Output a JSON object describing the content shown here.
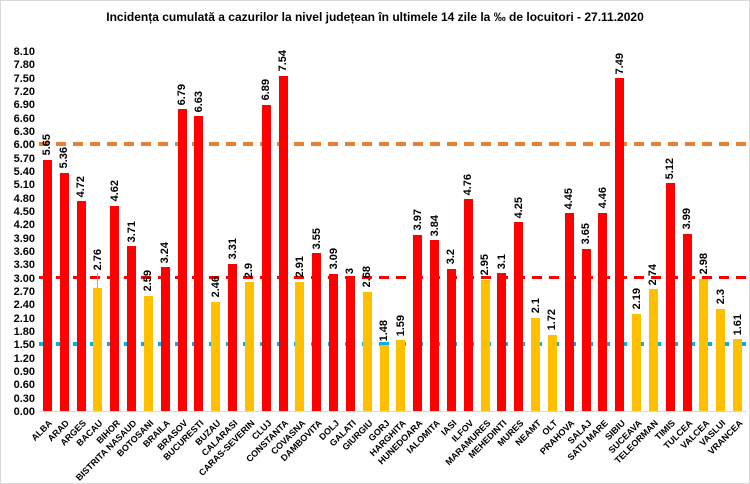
{
  "chart_data": {
    "type": "bar",
    "title": "Incidența cumulată a cazurilor la nivel județean în ultimele 14 zile la ‰ de locuitori - 27.11.2020",
    "categories": [
      "ALBA",
      "ARAD",
      "ARGES",
      "BACAU",
      "BIHOR",
      "BISTRITA NASAUD",
      "BOTOSANI",
      "BRAILA",
      "BRASOV",
      "BUCURESTI",
      "BUZAU",
      "CALARASI",
      "CARAS-SEVERIN",
      "CLUJ",
      "CONSTANTA",
      "COVASNA",
      "DAMBOVITA",
      "DOLJ",
      "GALATI",
      "GIURGIU",
      "GORJ",
      "HARGHITA",
      "HUNEDOARA",
      "IALOMITA",
      "IASI",
      "ILFOV",
      "MARAMURES",
      "MEHEDINTI",
      "MURES",
      "NEAMT",
      "OLT",
      "PRAHOVA",
      "SALAJ",
      "SATU MARE",
      "SIBIU",
      "SUCEAVA",
      "TELEORMAN",
      "TIMIS",
      "TULCEA",
      "VALCEA",
      "VASLUI",
      "VRANCEA"
    ],
    "values": [
      5.65,
      5.36,
      4.72,
      2.76,
      4.62,
      3.71,
      2.59,
      3.24,
      6.79,
      6.63,
      2.46,
      3.31,
      2.9,
      6.89,
      7.54,
      2.91,
      3.55,
      3.09,
      3,
      2.68,
      1.48,
      1.59,
      3.97,
      3.84,
      3.2,
      4.76,
      2.95,
      3.1,
      4.25,
      2.1,
      1.72,
      4.45,
      3.65,
      4.46,
      7.49,
      2.19,
      2.74,
      5.12,
      3.99,
      2.98,
      2.3,
      1.61
    ],
    "value_labels": [
      "5,65",
      "5,36",
      "4,72",
      "2,76",
      "4,62",
      "3,71",
      "2,59",
      "3,24",
      "6,79",
      "6,63",
      "2,46",
      "3,31",
      "2,9",
      "6,89",
      "7,54",
      "2,91",
      "3,55",
      "3,09",
      "3",
      "2,68",
      "1,48",
      "1,59",
      "3,97",
      "3,84",
      "3,2",
      "4,76",
      "2,95",
      "3,1",
      "4,25",
      "2,1",
      "1,72",
      "4,45",
      "3,65",
      "4,46",
      "7,49",
      "2,19",
      "2,74",
      "5,12",
      "3,99",
      "2,98",
      "2,3",
      "1,61"
    ],
    "value_labels_display": [
      "5.65",
      "5.36",
      "4.72",
      "2.76",
      "4.62",
      "3.71",
      "2.59",
      "3.24",
      "6.79",
      "6.63",
      "2.46",
      "3.31",
      "2.9",
      "6.89",
      "7.54",
      "2.91",
      "3.55",
      "3.09",
      "3",
      "2.68",
      "1.48",
      "1.59",
      "3.97",
      "3.84",
      "3.2",
      "4.76",
      "2.95",
      "3.1",
      "4.25",
      "2.1",
      "1.72",
      "4.45",
      "3.65",
      "4.46",
      "7.49",
      "2.19",
      "2.74",
      "5.12",
      "3.99",
      "2.98",
      "2.3",
      "1.61"
    ],
    "ylim": [
      0,
      8.1
    ],
    "ytick_step": 0.3,
    "ytick_decimals": 2,
    "grid": "off",
    "legend": "none",
    "bar_color_high": "#FF0000",
    "bar_color_low": "#FFC000",
    "color_threshold": 3.0,
    "reference_lines": [
      {
        "value": 6.0,
        "color": "#ED7D31",
        "style": "dashed",
        "thickness": 4
      },
      {
        "value": 3.0,
        "color": "#FF0000",
        "style": "dashed",
        "thickness": 3
      },
      {
        "value": 1.5,
        "color": "#00B0F0",
        "style": "dashed",
        "thickness": 4
      }
    ],
    "label_leader_lines": [
      "BACAU"
    ]
  }
}
